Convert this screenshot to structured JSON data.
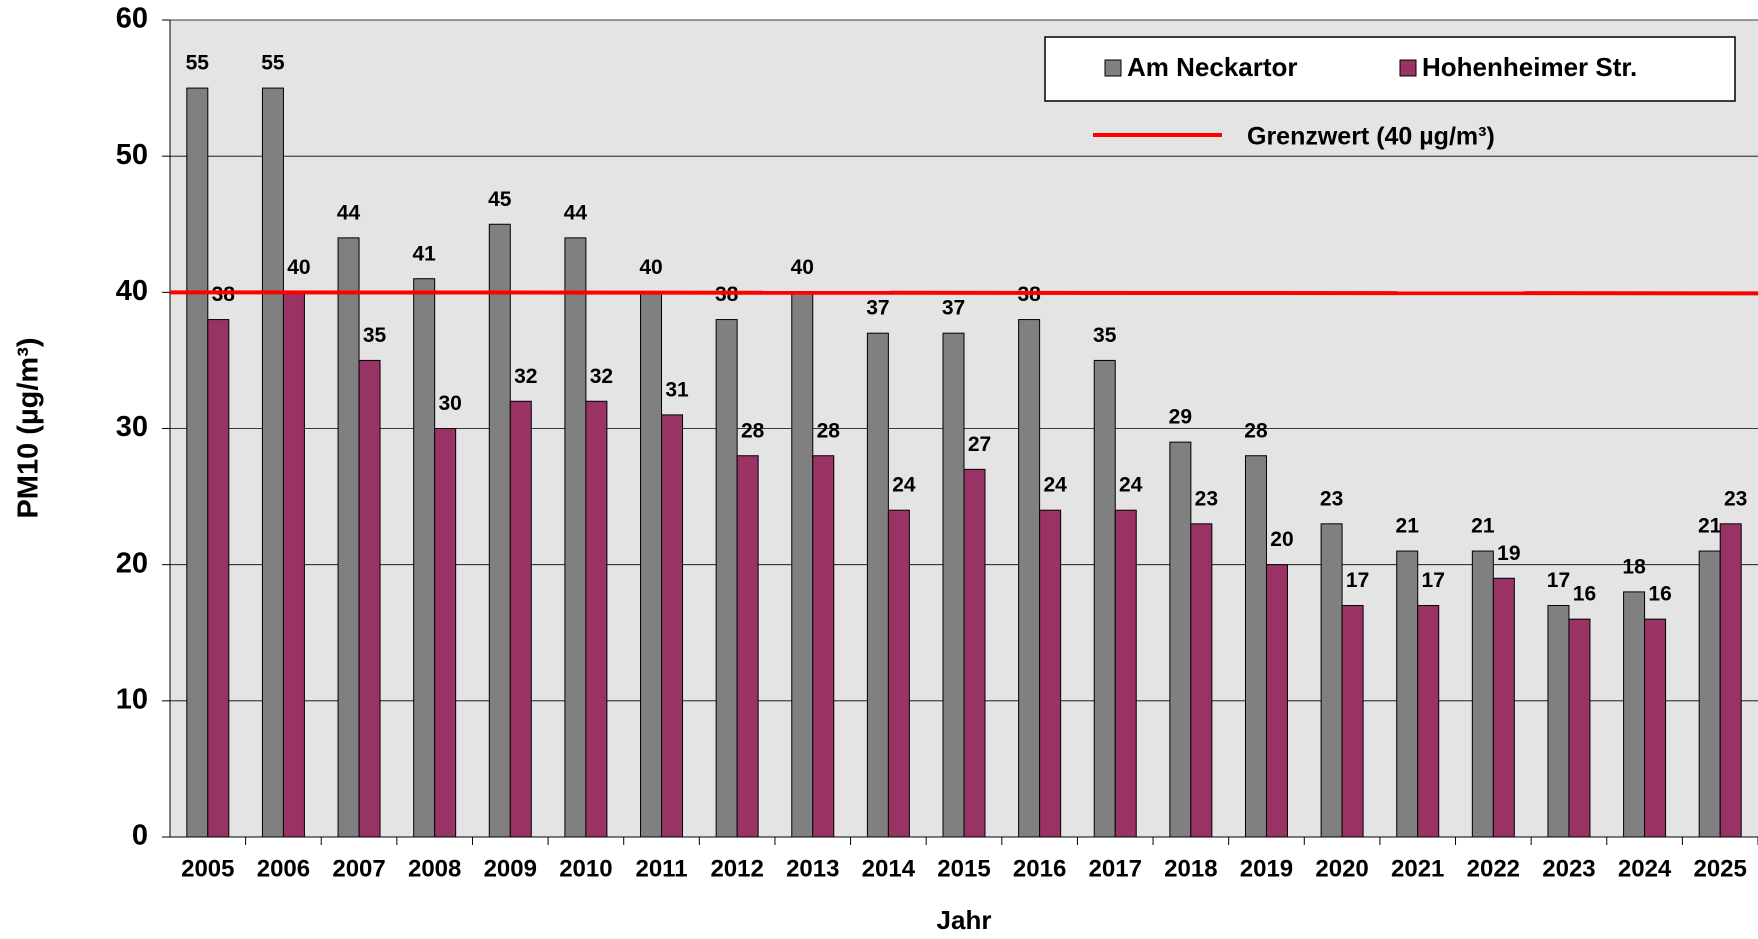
{
  "chart_data": {
    "type": "bar",
    "xlabel": "Jahr",
    "ylabel": "PM10 (µg/m³)",
    "categories": [
      "2005",
      "2006",
      "2007",
      "2008",
      "2009",
      "2010",
      "2011",
      "2012",
      "2013",
      "2014",
      "2015",
      "2016",
      "2017",
      "2018",
      "2019",
      "2020",
      "2021",
      "2022",
      "2023",
      "2024",
      "2025"
    ],
    "series": [
      {
        "name": "Am Neckartor",
        "color": "#808080",
        "values": [
          55,
          55,
          44,
          41,
          45,
          44,
          40,
          38,
          40,
          37,
          37,
          38,
          35,
          29,
          28,
          23,
          21,
          21,
          17,
          18,
          21
        ]
      },
      {
        "name": "Hohenheimer Str.",
        "color": "#993366",
        "values": [
          38,
          40,
          35,
          30,
          32,
          32,
          31,
          28,
          28,
          24,
          27,
          24,
          24,
          23,
          20,
          17,
          17,
          19,
          16,
          16,
          23
        ]
      }
    ],
    "reference_line": {
      "name": "Grenzwert (40 µg/m³)",
      "value": 40,
      "color": "#ff0000"
    },
    "ylim": [
      0,
      60
    ],
    "yticks": [
      0,
      10,
      20,
      30,
      40,
      50,
      60
    ],
    "grid": true
  }
}
